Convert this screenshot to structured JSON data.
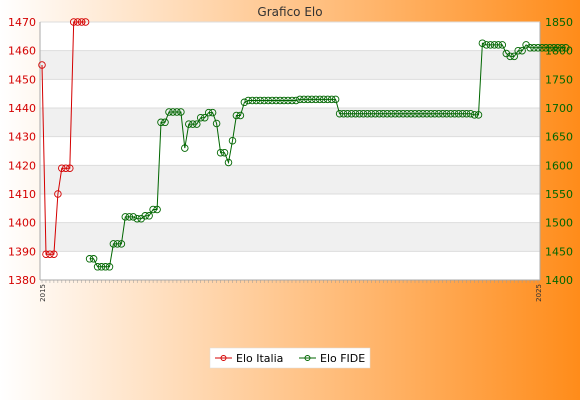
{
  "chart_data": {
    "type": "line",
    "title": "Grafico Elo",
    "background_gradient": [
      "#ffffff",
      "#ff8c1a"
    ],
    "grid": true,
    "legend_placement": "bottom-center",
    "y_left": {
      "range": [
        1380,
        1470
      ],
      "ticks": [
        1380,
        1390,
        1400,
        1410,
        1420,
        1430,
        1440,
        1450,
        1460,
        1470
      ],
      "color": "#d40000"
    },
    "y_right": {
      "range": [
        1400,
        1850
      ],
      "ticks": [
        1400,
        1450,
        1500,
        1550,
        1600,
        1650,
        1700,
        1750,
        1800,
        1850
      ],
      "color": "#006600"
    },
    "x": {
      "count": 126,
      "first_tick": "2015",
      "last_tick": "2025"
    },
    "series": [
      {
        "name": "Elo Italia",
        "color": "#d40000",
        "axis": "left",
        "values": [
          1455,
          1389,
          1389,
          1389,
          1410,
          1419,
          1419,
          1419,
          1470,
          1470,
          1470,
          1470
        ]
      },
      {
        "name": "Elo FIDE",
        "color": "#006600",
        "axis": "right",
        "start_index": 12,
        "values": [
          1437,
          1437,
          1423,
          1423,
          1423,
          1423,
          1463,
          1463,
          1463,
          1510,
          1510,
          1510,
          1507,
          1507,
          1512,
          1512,
          1523,
          1523,
          1675,
          1675,
          1693,
          1693,
          1693,
          1693,
          1630,
          1672,
          1672,
          1672,
          1683,
          1683,
          1692,
          1692,
          1673,
          1622,
          1622,
          1605,
          1643,
          1687,
          1687,
          1710,
          1713,
          1713,
          1713,
          1713,
          1713,
          1713,
          1713,
          1713,
          1713,
          1713,
          1713,
          1713,
          1713,
          1715,
          1715,
          1715,
          1715,
          1715,
          1715,
          1715,
          1715,
          1715,
          1715,
          1690,
          1690,
          1690,
          1690,
          1690,
          1690,
          1690,
          1690,
          1690,
          1690,
          1690,
          1690,
          1690,
          1690,
          1690,
          1690,
          1690,
          1690,
          1690,
          1690,
          1690,
          1690,
          1690,
          1690,
          1690,
          1690,
          1690,
          1690,
          1690,
          1690,
          1690,
          1690,
          1690,
          1690,
          1688,
          1688,
          1813,
          1810,
          1810,
          1810,
          1810,
          1810,
          1795,
          1790,
          1790,
          1800,
          1800,
          1810,
          1805,
          1805,
          1805,
          1805,
          1805,
          1805,
          1805,
          1805,
          1805,
          1805
        ]
      }
    ]
  }
}
